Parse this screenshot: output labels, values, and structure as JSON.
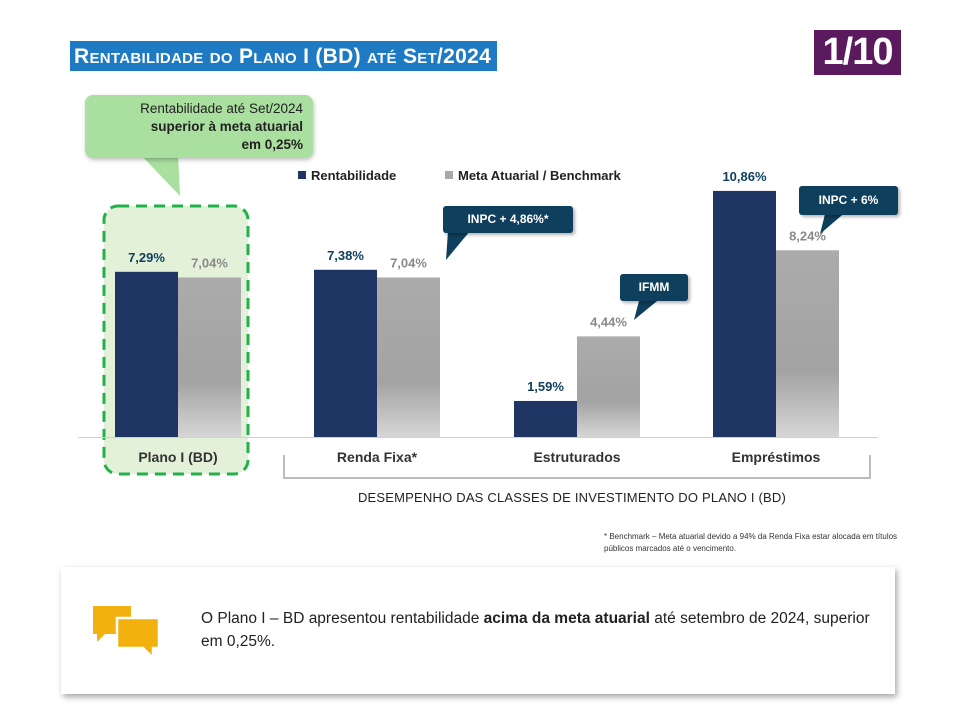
{
  "header": {
    "title": "Rentabilidade do Plano I (BD) até Set/2024",
    "page_number": "1/10"
  },
  "callout": {
    "line1": "Rentabilidade até Set/2024",
    "line2": "superior à meta atuarial",
    "line3": "em 0,25%"
  },
  "colors": {
    "rentabilidade": "#1f3564",
    "meta": "#a9a9a9",
    "title_bg": "#1f7ac4",
    "page_badge": "#5b1a5e",
    "tip_bg": "#0e3f5c",
    "highlight_dash": "#22b04a",
    "highlight_fill": "#e4f1d9",
    "icon_yellow": "#f2b10f"
  },
  "chart_data": {
    "type": "bar",
    "categories": [
      "Plano I (BD)",
      "Renda Fixa*",
      "Estruturados",
      "Empréstimos"
    ],
    "series": [
      {
        "name": "Rentabilidade",
        "values": [
          7.29,
          7.38,
          1.59,
          10.86
        ],
        "labels": [
          "7,29%",
          "7,38%",
          "1,59%",
          "10,86%"
        ]
      },
      {
        "name": "Meta Atuarial / Benchmark",
        "values": [
          7.04,
          7.04,
          4.44,
          8.24
        ],
        "labels": [
          "7,04%",
          "7,04%",
          "4,44%",
          "8,24%"
        ]
      }
    ],
    "annotations": [
      "INPC + 4,86%*",
      "IFMM",
      "INPC + 6%"
    ],
    "xlabel": "DESEMPENHO DAS CLASSES DE INVESTIMENTO DO PLANO I (BD)",
    "ylabel": "",
    "ylim": [
      0,
      12
    ],
    "legend": "top-center",
    "grid": false
  },
  "footnote": "* Benchmark – Meta atuarial devido a 94% da Renda Fixa estar alocada em títulos públicos marcados até o vencimento.",
  "summary": {
    "text_before": "O Plano I – BD apresentou rentabilidade ",
    "text_bold": "acima da meta atuarial",
    "text_after": " até setembro de 2024, superior em 0,25%."
  }
}
